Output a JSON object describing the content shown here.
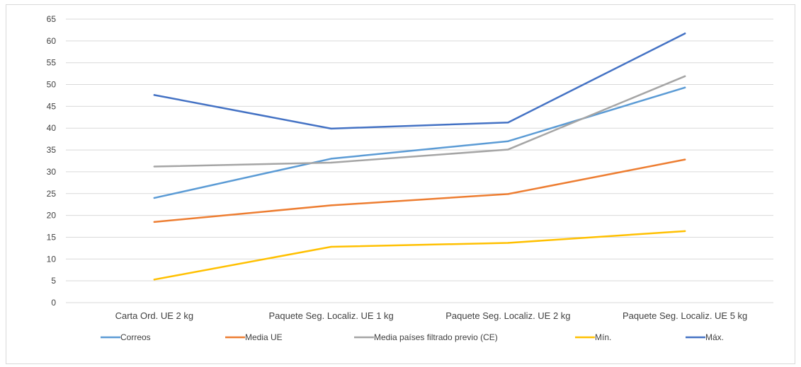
{
  "chart_data": {
    "type": "line",
    "title": "",
    "xlabel": "",
    "ylabel": "",
    "categories": [
      "Carta Ord. UE 2 kg",
      "Paquete Seg. Localiz. UE 1 kg",
      "Paquete Seg. Localiz. UE 2 kg",
      "Paquete Seg. Localiz. UE 5 kg"
    ],
    "ylim": [
      0,
      65
    ],
    "yticks": [
      0,
      5,
      10,
      15,
      20,
      25,
      30,
      35,
      40,
      45,
      50,
      55,
      60,
      65
    ],
    "grid": true,
    "legend_position": "bottom",
    "series": [
      {
        "name": "Correos",
        "color": "#5b9bd5",
        "values": [
          24.0,
          33.0,
          37.0,
          49.3
        ]
      },
      {
        "name": "Media UE",
        "color": "#ed7d31",
        "values": [
          18.5,
          22.3,
          24.9,
          32.8
        ]
      },
      {
        "name": "Media países filtrado previo (CE)",
        "color": "#a5a5a5",
        "values": [
          31.2,
          32.1,
          35.1,
          51.9
        ]
      },
      {
        "name": "Mín.",
        "color": "#ffc000",
        "values": [
          5.3,
          12.8,
          13.7,
          16.4
        ]
      },
      {
        "name": "Máx.",
        "color": "#4472c4",
        "values": [
          47.6,
          39.9,
          41.3,
          61.7
        ]
      }
    ]
  }
}
